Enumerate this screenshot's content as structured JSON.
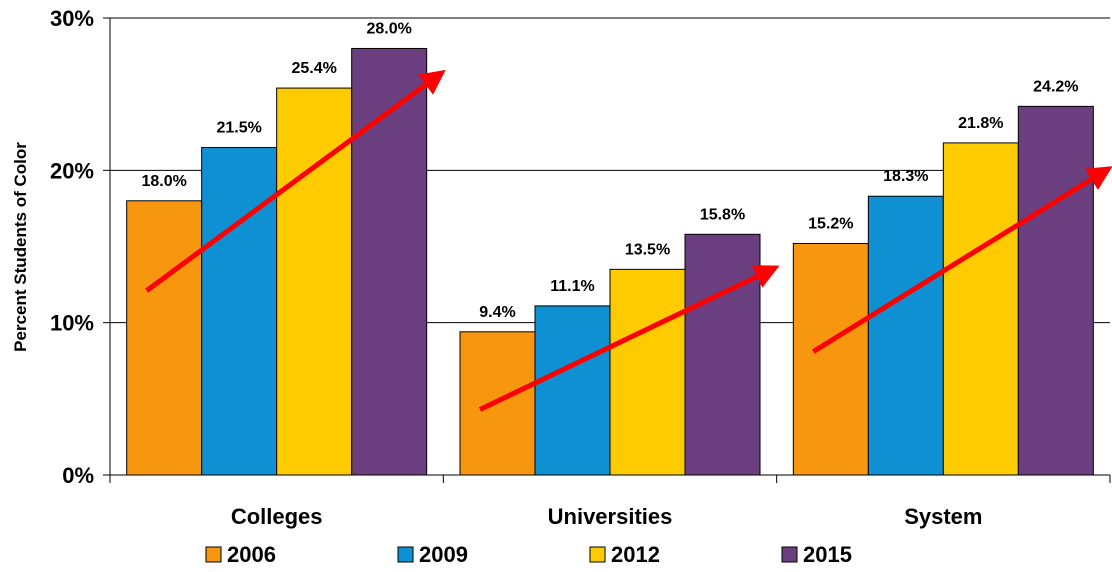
{
  "chart_data": {
    "type": "bar",
    "title": "",
    "xlabel": "",
    "ylabel": "Percent Students of Color",
    "categories": [
      "Colleges",
      "Universities",
      "System"
    ],
    "series": [
      {
        "name": "2006",
        "values": [
          18.0,
          9.4,
          15.2
        ],
        "labels": [
          "18.0%",
          "9.4%",
          "15.2%"
        ],
        "color": "#F7960F"
      },
      {
        "name": "2009",
        "values": [
          21.5,
          11.1,
          18.3
        ],
        "labels": [
          "21.5%",
          "11.1%",
          "18.3%"
        ],
        "color": "#0E90D2"
      },
      {
        "name": "2012",
        "values": [
          25.4,
          13.5,
          21.8
        ],
        "labels": [
          "25.4%",
          "13.5%",
          "21.8%"
        ],
        "color": "#FECB00"
      },
      {
        "name": "2015",
        "values": [
          28.0,
          15.8,
          24.2
        ],
        "labels": [
          "28.0%",
          "15.8%",
          "24.2%"
        ],
        "color": "#6B3F7F"
      }
    ],
    "ylim": [
      0,
      30
    ],
    "yticks": [
      {
        "value": 0,
        "label": "0%"
      },
      {
        "value": 10,
        "label": "10%"
      },
      {
        "value": 20,
        "label": "20%"
      },
      {
        "value": 30,
        "label": "30%"
      }
    ],
    "grid": true,
    "legend_position": "bottom",
    "annotations": [
      {
        "type": "trend-arrow",
        "category": "Colleges",
        "from_y": 12.1,
        "to_y": 26.4,
        "color": "#FF0000"
      },
      {
        "type": "trend-arrow",
        "category": "Universities",
        "from_y": 4.3,
        "to_y": 13.6,
        "color": "#FF0000"
      },
      {
        "type": "trend-arrow",
        "category": "System",
        "from_y": 8.1,
        "to_y": 20.1,
        "color": "#FF0000"
      }
    ]
  }
}
